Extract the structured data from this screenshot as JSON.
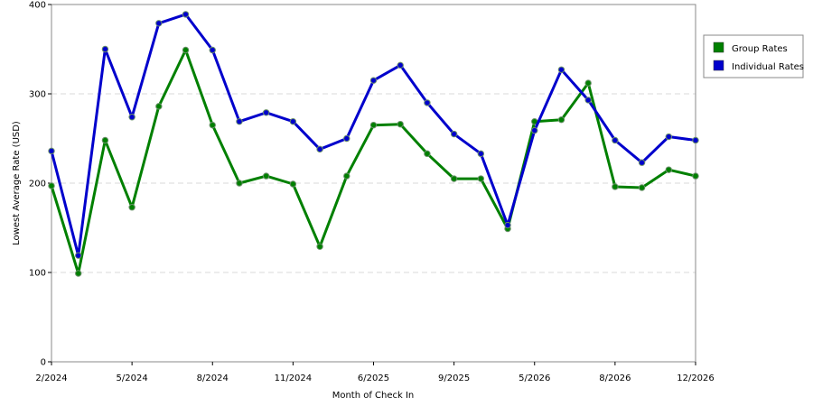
{
  "chart_data": {
    "type": "line",
    "title": "",
    "xlabel": "Month of Check In",
    "ylabel": "Lowest Average Rate (USD)",
    "ylim": [
      0,
      400
    ],
    "yticks": [
      0,
      100,
      200,
      300,
      400
    ],
    "grid": "horizontal dashed",
    "legend_position": "right",
    "x_tick_labels": [
      "2/2024",
      "5/2024",
      "8/2024",
      "11/2024",
      "6/2025",
      "9/2025",
      "5/2026",
      "8/2026",
      "12/2026"
    ],
    "series": [
      {
        "name": "Group Rates",
        "color": "#008000",
        "values": [
          197,
          99,
          248,
          173,
          286,
          349,
          265,
          200,
          208,
          199,
          129,
          208,
          265,
          266,
          233,
          205,
          205,
          149,
          269,
          271,
          312,
          196,
          195,
          215,
          208
        ]
      },
      {
        "name": "Individual Rates",
        "color": "#0000CC",
        "values": [
          236,
          119,
          350,
          274,
          379,
          389,
          349,
          269,
          279,
          269,
          238,
          250,
          315,
          332,
          290,
          255,
          233,
          153,
          259,
          327,
          293,
          248,
          223,
          252,
          248
        ]
      }
    ]
  }
}
